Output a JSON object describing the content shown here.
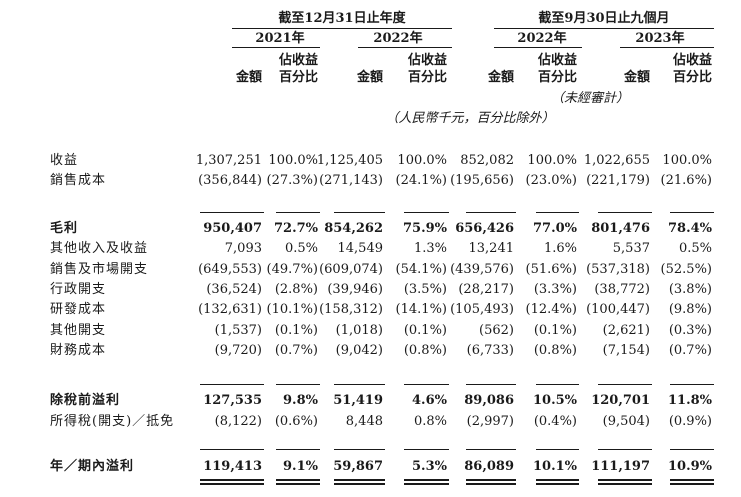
{
  "header": {
    "group1": "截至12月31日止年度",
    "group2": "截至9月30日止九個月",
    "years": [
      "2021年",
      "2022年",
      "2022年",
      "2023年"
    ],
    "amount_label": "金額",
    "pct_label_line1": "佔收益",
    "pct_label_line2": "百分比",
    "unaudited": "（未經審計）",
    "unit_note": "（人民幣千元，百分比除外）"
  },
  "rows": [
    {
      "label": "收益",
      "bold": false,
      "vals": [
        "1,307,251",
        "100.0%",
        "1,125,405",
        "100.0%",
        "852,082",
        "100.0%",
        "1,022,655",
        "100.0%"
      ]
    },
    {
      "label": "銷售成本",
      "bold": false,
      "vals": [
        "(356,844)",
        "(27.3%)",
        "(271,143)",
        "(24.1%)",
        "(195,656)",
        "(23.0%)",
        "(221,179)",
        "(21.6%)"
      ]
    },
    {
      "label": "毛利",
      "bold": true,
      "vals": [
        "950,407",
        "72.7%",
        "854,262",
        "75.9%",
        "656,426",
        "77.0%",
        "801,476",
        "78.4%"
      ]
    },
    {
      "label": "其他收入及收益",
      "bold": false,
      "vals": [
        "7,093",
        "0.5%",
        "14,549",
        "1.3%",
        "13,241",
        "1.6%",
        "5,537",
        "0.5%"
      ]
    },
    {
      "label": "銷售及市場開支",
      "bold": false,
      "vals": [
        "(649,553)",
        "(49.7%)",
        "(609,074)",
        "(54.1%)",
        "(439,576)",
        "(51.6%)",
        "(537,318)",
        "(52.5%)"
      ]
    },
    {
      "label": "行政開支",
      "bold": false,
      "vals": [
        "(36,524)",
        "(2.8%)",
        "(39,946)",
        "(3.5%)",
        "(28,217)",
        "(3.3%)",
        "(38,772)",
        "(3.8%)"
      ]
    },
    {
      "label": "研發成本",
      "bold": false,
      "vals": [
        "(132,631)",
        "(10.1%)",
        "(158,312)",
        "(14.1%)",
        "(105,493)",
        "(12.4%)",
        "(100,447)",
        "(9.8%)"
      ]
    },
    {
      "label": "其他開支",
      "bold": false,
      "vals": [
        "(1,537)",
        "(0.1%)",
        "(1,018)",
        "(0.1%)",
        "(562)",
        "(0.1%)",
        "(2,621)",
        "(0.3%)"
      ]
    },
    {
      "label": "財務成本",
      "bold": false,
      "vals": [
        "(9,720)",
        "(0.7%)",
        "(9,042)",
        "(0.8%)",
        "(6,733)",
        "(0.8%)",
        "(7,154)",
        "(0.7%)"
      ]
    },
    {
      "label": "除稅前溢利",
      "bold": true,
      "vals": [
        "127,535",
        "9.8%",
        "51,419",
        "4.6%",
        "89,086",
        "10.5%",
        "120,701",
        "11.8%"
      ]
    },
    {
      "label": "所得稅(開支)／抵免",
      "bold": false,
      "vals": [
        "(8,122)",
        "(0.6%)",
        "8,448",
        "0.8%",
        "(2,997)",
        "(0.4%)",
        "(9,504)",
        "(0.9%)"
      ]
    },
    {
      "label": "年／期內溢利",
      "bold": true,
      "vals": [
        "119,413",
        "9.1%",
        "59,867",
        "5.3%",
        "86,089",
        "10.1%",
        "111,197",
        "10.9%"
      ]
    }
  ]
}
